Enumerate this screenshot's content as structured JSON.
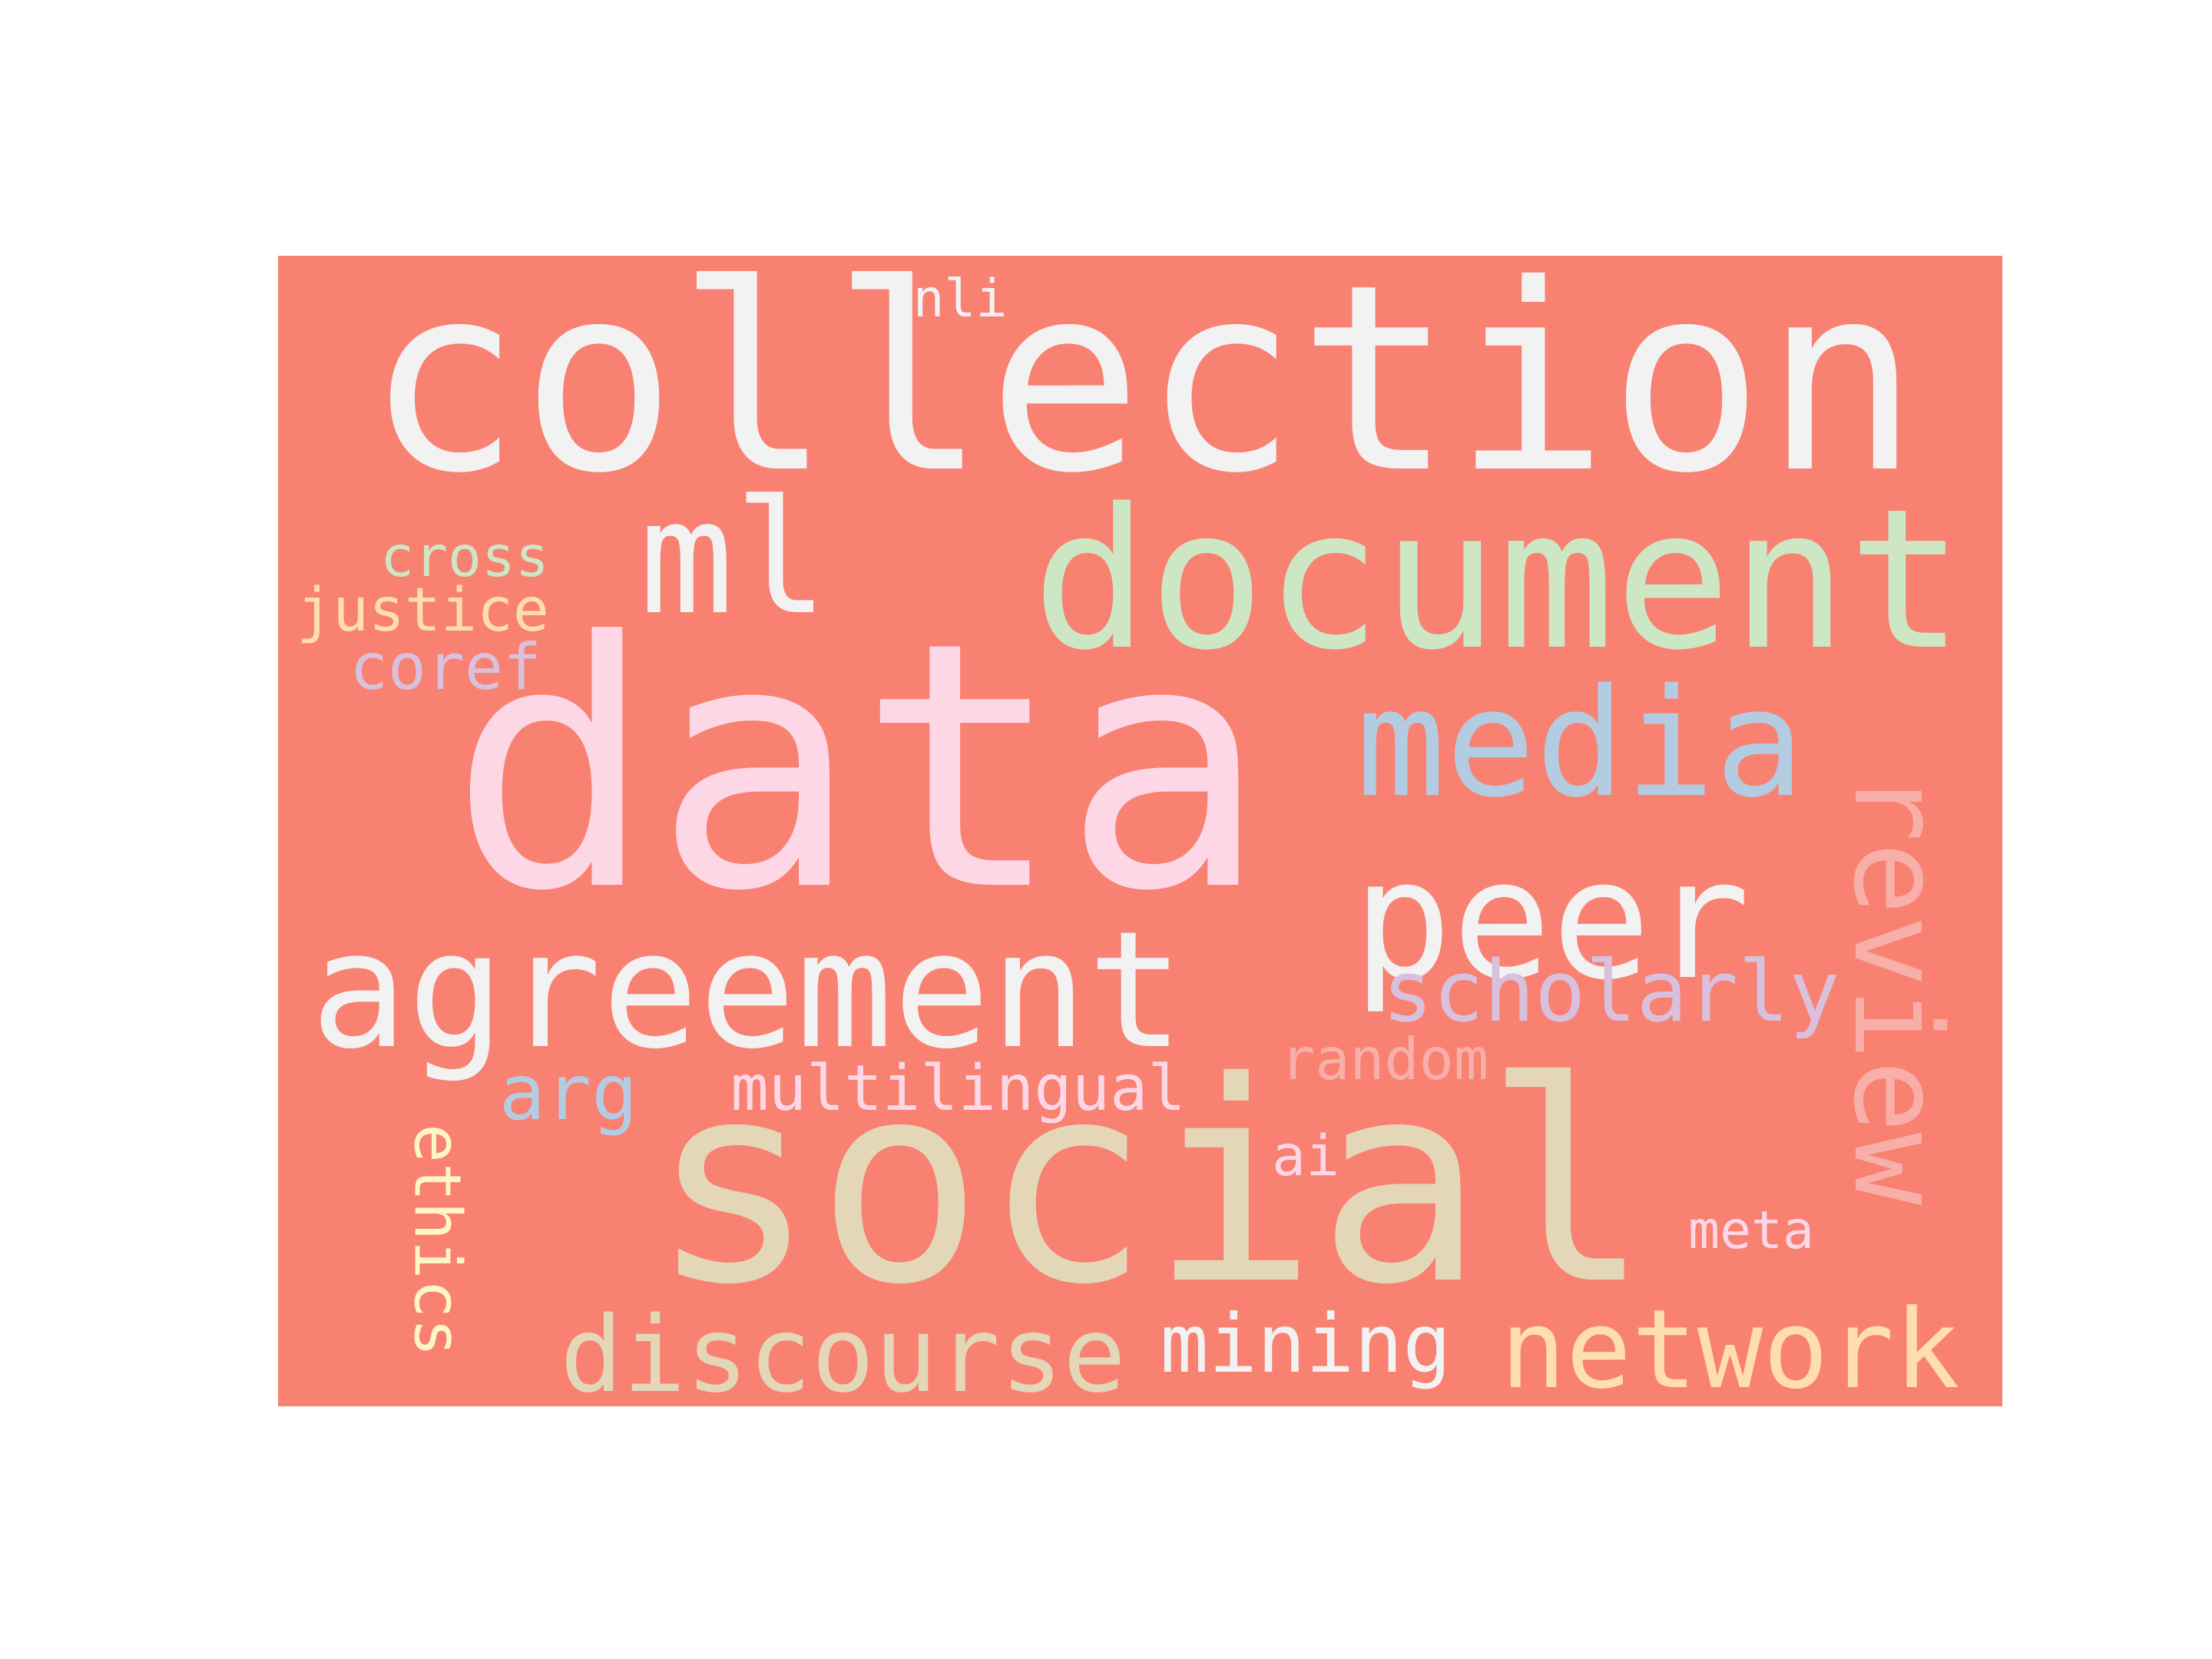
{
  "wordcloud": {
    "background_color": "#F88171",
    "words": [
      {
        "text": "data",
        "color": "#FDD7E6"
      },
      {
        "text": "collection",
        "color": "#F2F2F2"
      },
      {
        "text": "social",
        "color": "#E4D7B8"
      },
      {
        "text": "document",
        "color": "#CDE7C5"
      },
      {
        "text": "agreement",
        "color": "#F2F2F2"
      },
      {
        "text": "peer",
        "color": "#F2F2F2"
      },
      {
        "text": "media",
        "color": "#B4CCE2"
      },
      {
        "text": "review",
        "color": "#F9AFA9"
      },
      {
        "text": "ml",
        "color": "#F2F2F2"
      },
      {
        "text": "network",
        "color": "#FFDEAE"
      },
      {
        "text": "discourse",
        "color": "#E4D7B8"
      },
      {
        "text": "mining",
        "color": "#F2F2F2"
      },
      {
        "text": "scholarly",
        "color": "#D9C0DD"
      },
      {
        "text": "ethics",
        "color": "#FFF6C6"
      },
      {
        "text": "arg",
        "color": "#B4CCE2"
      },
      {
        "text": "multilingual",
        "color": "#FDD7E6"
      },
      {
        "text": "random",
        "color": "#F9AFA9"
      },
      {
        "text": "cross",
        "color": "#CDE7C5"
      },
      {
        "text": "justice",
        "color": "#FFDEAE"
      },
      {
        "text": "coref",
        "color": "#D9C0DD"
      },
      {
        "text": "nli",
        "color": "#F2F2F2"
      },
      {
        "text": "ai",
        "color": "#FDD7E6"
      },
      {
        "text": "meta",
        "color": "#FDD7E6"
      }
    ]
  }
}
